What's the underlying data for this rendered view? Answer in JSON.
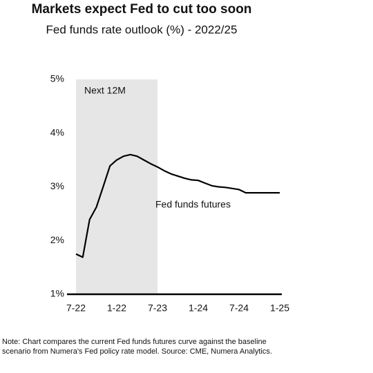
{
  "chart_data": {
    "type": "line",
    "title": "Markets expect Fed to cut too soon",
    "subtitle": "Fed funds rate outlook (%) - 2022/25",
    "categories": [
      "7-22",
      null,
      null,
      null,
      null,
      null,
      "1-22",
      null,
      null,
      null,
      null,
      null,
      "7-23",
      null,
      null,
      null,
      null,
      null,
      "1-24",
      null,
      null,
      null,
      null,
      null,
      "7-24",
      null,
      null,
      null,
      null,
      null,
      "1-25"
    ],
    "series": [
      {
        "name": "Fed funds futures",
        "color": "#000000",
        "values": [
          1.75,
          1.69,
          2.39,
          2.62,
          3.0,
          3.39,
          3.5,
          3.57,
          3.6,
          3.57,
          3.5,
          3.43,
          3.37,
          3.3,
          3.24,
          3.2,
          3.16,
          3.13,
          3.12,
          3.07,
          3.02,
          3.0,
          2.99,
          2.97,
          2.95,
          2.89,
          2.89,
          2.89,
          2.89,
          2.89,
          2.89
        ]
      }
    ],
    "shade": {
      "label": "Next 12M",
      "from": "7-22",
      "to": "7-23",
      "color": "#e6e6e6"
    },
    "ylim": [
      1,
      5
    ],
    "yticks": [
      {
        "value": 1,
        "label": "1%"
      },
      {
        "value": 2,
        "label": "2%"
      },
      {
        "value": 3,
        "label": "3%"
      },
      {
        "value": 4,
        "label": "4%"
      },
      {
        "value": 5,
        "label": "5%"
      }
    ],
    "note": [
      "Note: Chart compares the current Fed funds futures curve against the baseline",
      "scenario from Numera's Fed policy rate model. Source: CME, Numera Analytics."
    ]
  }
}
